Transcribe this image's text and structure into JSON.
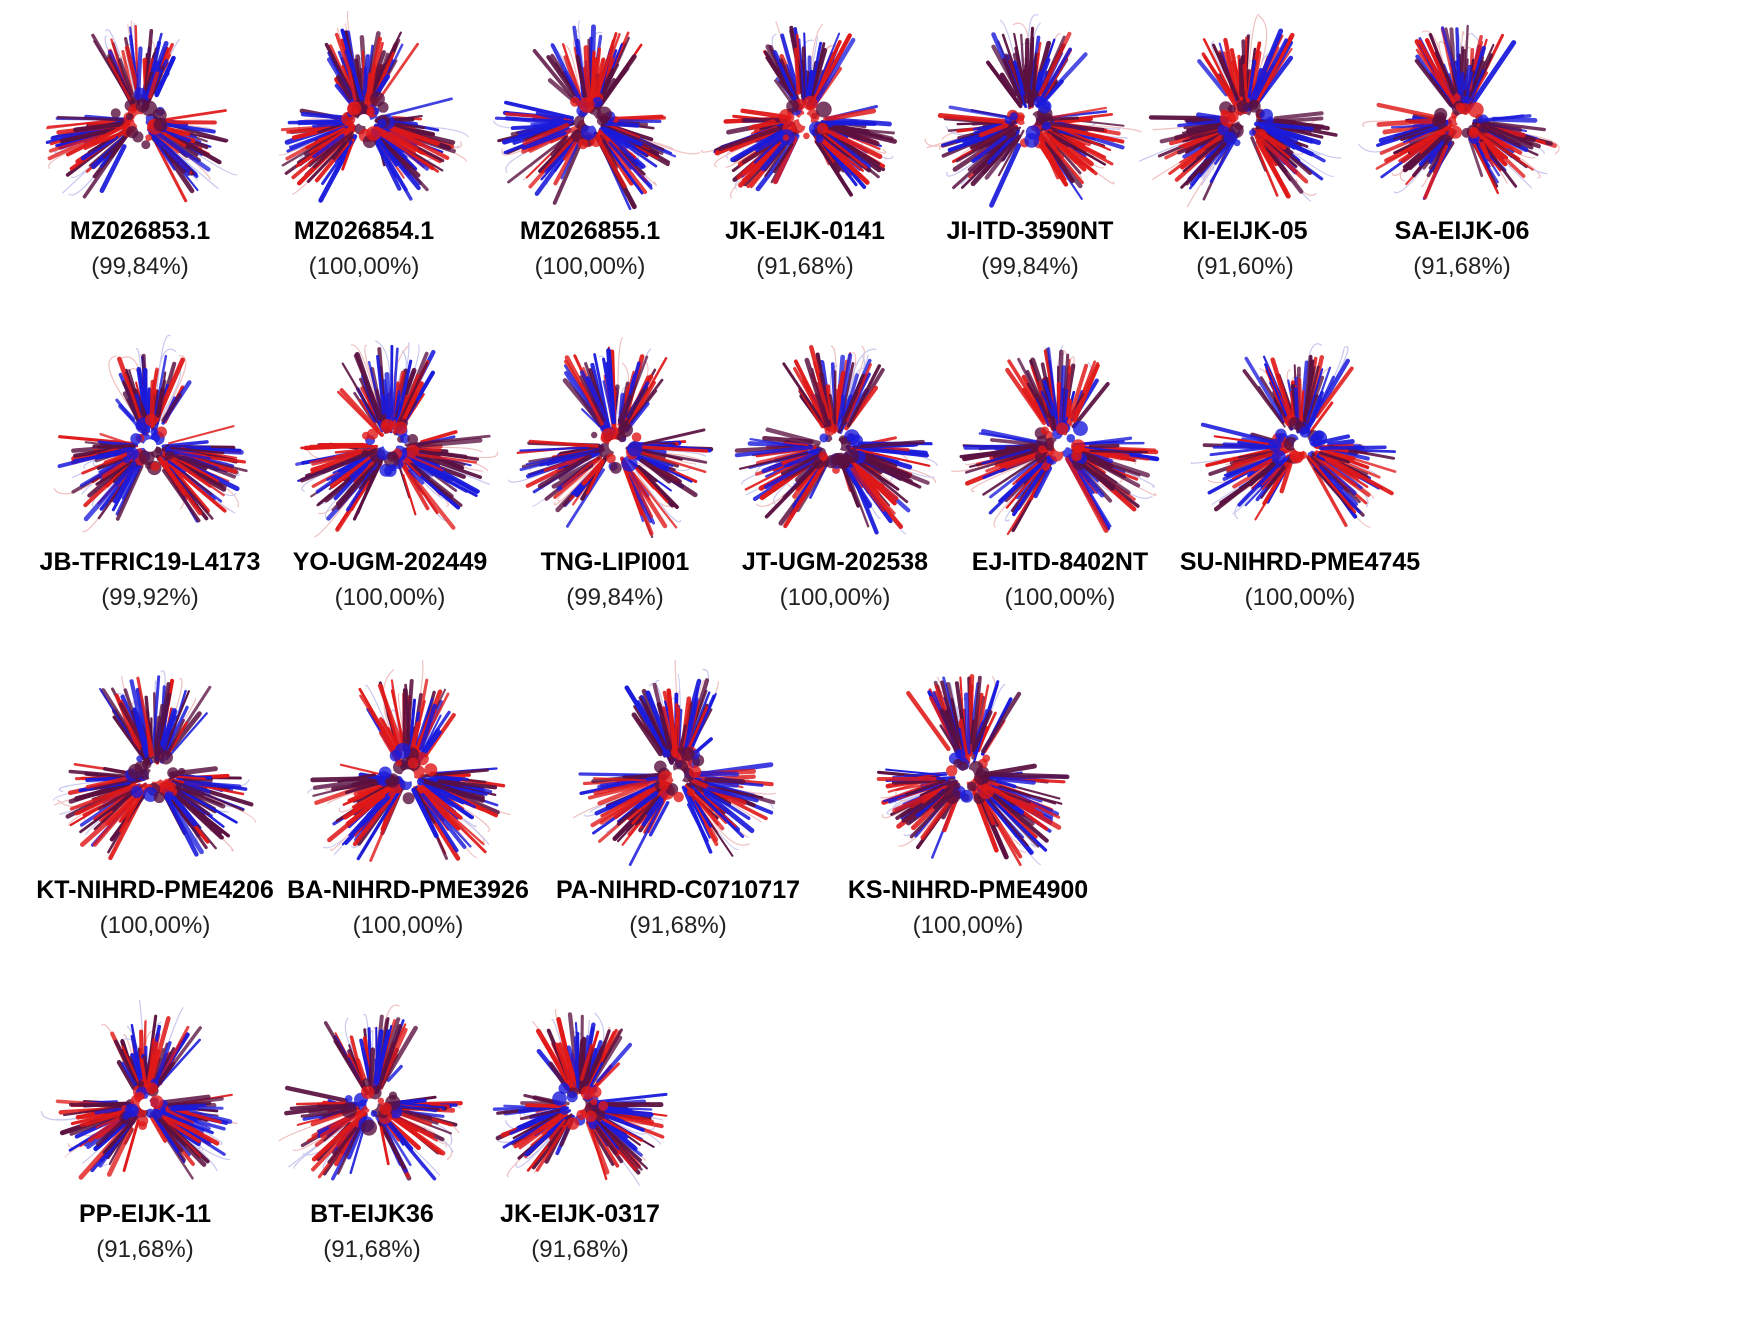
{
  "structures": [
    {
      "name": "MZ026853.1",
      "identity": "(99,84%)"
    },
    {
      "name": "MZ026854.1",
      "identity": "(100,00%)"
    },
    {
      "name": "MZ026855.1",
      "identity": "(100,00%)"
    },
    {
      "name": "JK-EIJK-0141",
      "identity": "(91,68%)"
    },
    {
      "name": "JI-ITD-3590NT",
      "identity": "(99,84%)"
    },
    {
      "name": "KI-EIJK-05",
      "identity": "(91,60%)"
    },
    {
      "name": "SA-EIJK-06",
      "identity": "(91,68%)"
    },
    {
      "name": "JB-TFRIC19-L4173",
      "identity": "(99,92%)"
    },
    {
      "name": "YO-UGM-202449",
      "identity": "(100,00%)"
    },
    {
      "name": "TNG-LIPI001",
      "identity": "(99,84%)"
    },
    {
      "name": "JT-UGM-202538",
      "identity": "(100,00%)"
    },
    {
      "name": "EJ-ITD-8402NT",
      "identity": "(100,00%)"
    },
    {
      "name": "SU-NIHRD-PME4745",
      "identity": "(100,00%)"
    },
    {
      "name": "KT-NIHRD-PME4206",
      "identity": "(100,00%)"
    },
    {
      "name": "BA-NIHRD-PME3926",
      "identity": "(100,00%)"
    },
    {
      "name": "PA-NIHRD-C0710717",
      "identity": "(91,68%)"
    },
    {
      "name": "KS-NIHRD-PME4900",
      "identity": "(100,00%)"
    },
    {
      "name": "PP-EIJK-11",
      "identity": "(91,68%)"
    },
    {
      "name": "BT-EIJK36",
      "identity": "(91,68%)"
    },
    {
      "name": "JK-EIJK-0317",
      "identity": "(91,68%)"
    }
  ],
  "colors": {
    "ribbon_a": "#1a1adc",
    "ribbon_b": "#e01818",
    "ribbon_dark": "#5a1040"
  }
}
